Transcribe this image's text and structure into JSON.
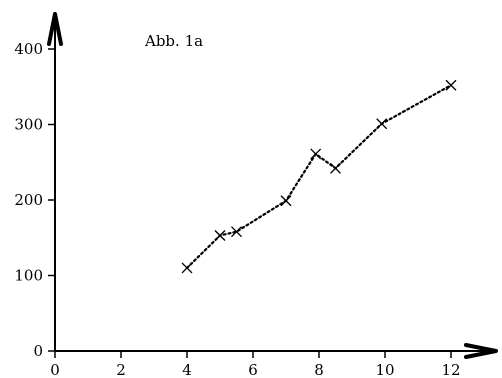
{
  "chart_data": {
    "type": "line",
    "title": "Abb. 1a",
    "xlabel": "",
    "ylabel": "",
    "xlim": [
      0,
      13
    ],
    "ylim": [
      0,
      420
    ],
    "x_ticks": [
      0,
      2,
      4,
      6,
      8,
      10,
      12
    ],
    "y_ticks": [
      0,
      100,
      200,
      300,
      400
    ],
    "grid": false,
    "marker": "x",
    "line_style": "dotted",
    "series": [
      {
        "x": [
          4,
          5,
          5.5,
          7,
          7.9,
          8.5,
          9.9,
          12
        ],
        "y": [
          110,
          153,
          158,
          199,
          261,
          242,
          301,
          352
        ]
      }
    ]
  }
}
